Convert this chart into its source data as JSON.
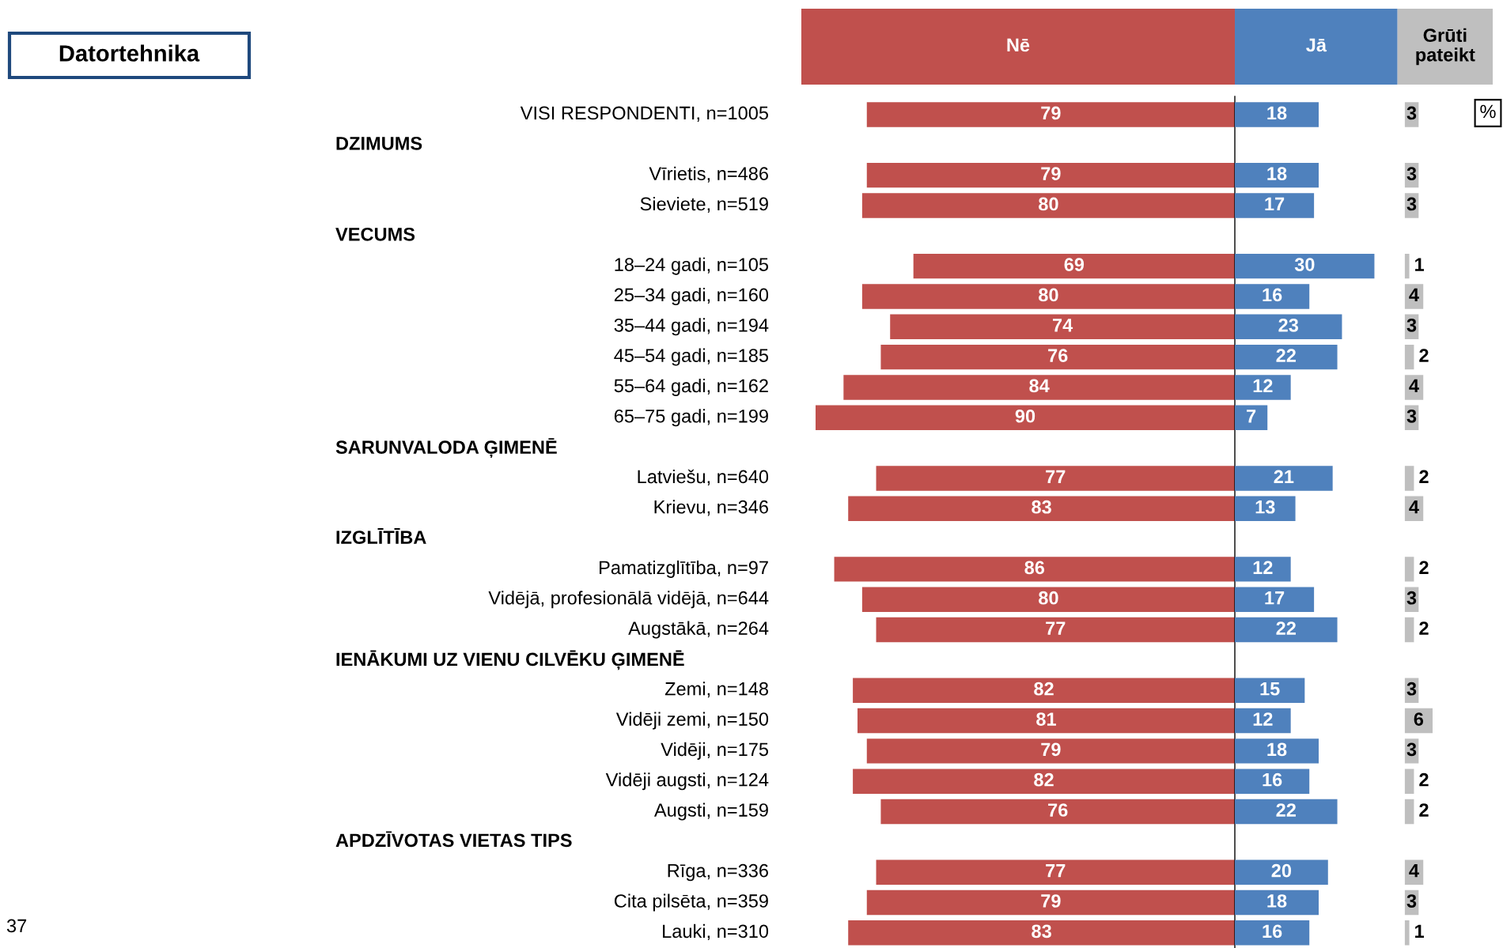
{
  "chart_data": [
    {
      "type": "bar",
      "orientation": "horizontal",
      "categories": [
        "VISI RESPONDENTI, n=1005",
        null,
        "Vīrietis, n=486",
        "Sieviete, n=519",
        null,
        "18–24 gadi, n=105",
        "25–34 gadi, n=160",
        "35–44 gadi, n=194",
        "45–54 gadi, n=185",
        "55–64 gadi, n=162",
        "65–75 gadi, n=199",
        null,
        "Latviešu, n=640",
        "Krievu, n=346",
        null,
        "Pamatizglītība, n=97",
        "Vidējā, profesionālā vidējā, n=644",
        "Augstākā, n=264",
        null,
        "Zemi, n=148",
        "Vidēji zemi, n=150",
        "Vidēji, n=175",
        "Vidēji augsti, n=124",
        "Augsti, n=159",
        null,
        "Rīga, n=336",
        "Cita pilsēta, n=359",
        "Lauki, n=310"
      ],
      "series": [
        {
          "name": "Nē",
          "color": "#c0504d",
          "values": [
            79,
            null,
            79,
            80,
            null,
            69,
            80,
            74,
            76,
            84,
            90,
            null,
            77,
            83,
            null,
            86,
            80,
            77,
            null,
            82,
            81,
            79,
            82,
            76,
            null,
            77,
            79,
            83
          ]
        }
      ],
      "xlim": [
        90,
        0
      ],
      "data_labels": true,
      "legend": "top",
      "ref_lines": [
        {
          "axis": "x",
          "value": 0,
          "color": "#000000"
        }
      ],
      "annotations": [
        "Datortehnika",
        "37",
        "DZIMUMS",
        "VECUMS",
        "SARUNVALODA ĢIMENĒ",
        "IZGLĪTĪBA",
        "IENĀKUMI UZ VIENU CILVĒKU ĢIMENĒ",
        "APDZĪVOTAS VIETAS TIPS"
      ]
    },
    {
      "type": "bar",
      "orientation": "horizontal",
      "categories": [
        null,
        null,
        null,
        null,
        null,
        null,
        null,
        null,
        null,
        null,
        null,
        null,
        null,
        null,
        null,
        null,
        null,
        null,
        null,
        null,
        null,
        null,
        null,
        null,
        null,
        null,
        null,
        null
      ],
      "series": [
        {
          "name": "Jā",
          "color": "#4f81bd",
          "values": [
            18,
            null,
            18,
            17,
            null,
            30,
            16,
            23,
            22,
            12,
            7,
            null,
            21,
            13,
            null,
            12,
            17,
            22,
            null,
            15,
            12,
            18,
            16,
            22,
            null,
            20,
            18,
            16
          ]
        }
      ],
      "data_labels": true,
      "legend": "top"
    },
    {
      "type": "bar",
      "orientation": "horizontal",
      "categories": [
        null,
        null,
        null,
        null,
        null,
        null,
        null,
        null,
        null,
        null,
        null,
        null,
        null,
        null,
        null,
        null,
        null,
        null,
        null,
        null,
        null,
        null,
        null,
        null,
        null,
        null,
        null,
        null
      ],
      "series": [
        {
          "name": "Grūti pateikt",
          "color": "#bfbfbf",
          "values": [
            3,
            null,
            3,
            3,
            null,
            1,
            4,
            3,
            2,
            4,
            3,
            null,
            2,
            4,
            null,
            2,
            3,
            2,
            null,
            3,
            6,
            3,
            2,
            2,
            null,
            4,
            3,
            1
          ]
        }
      ],
      "data_labels": true,
      "legend": "top",
      "annotations": [
        "%"
      ]
    }
  ]
}
